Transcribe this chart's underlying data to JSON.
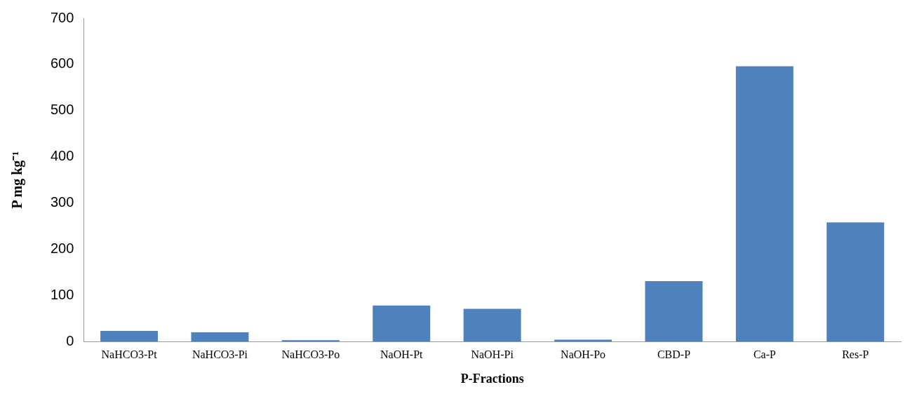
{
  "chart_data": {
    "type": "bar",
    "xlabel": "P-Fractions",
    "ylabel": "P mg kg⁻¹",
    "categories": [
      "NaHCO3-Pt",
      "NaHCO3-Pi",
      "NaHCO3-Po",
      "NaOH-Pt",
      "NaOH-Pi",
      "NaOH-Po",
      "CBD-P",
      "Ca-P",
      "Res-P"
    ],
    "values": [
      23,
      20,
      3,
      78,
      71,
      4,
      131,
      596,
      258
    ],
    "color": "#4f81bd",
    "ylim": [
      0,
      700
    ],
    "yticks": [
      0,
      100,
      200,
      300,
      400,
      500,
      600,
      700
    ],
    "grid": false,
    "legend": false
  }
}
